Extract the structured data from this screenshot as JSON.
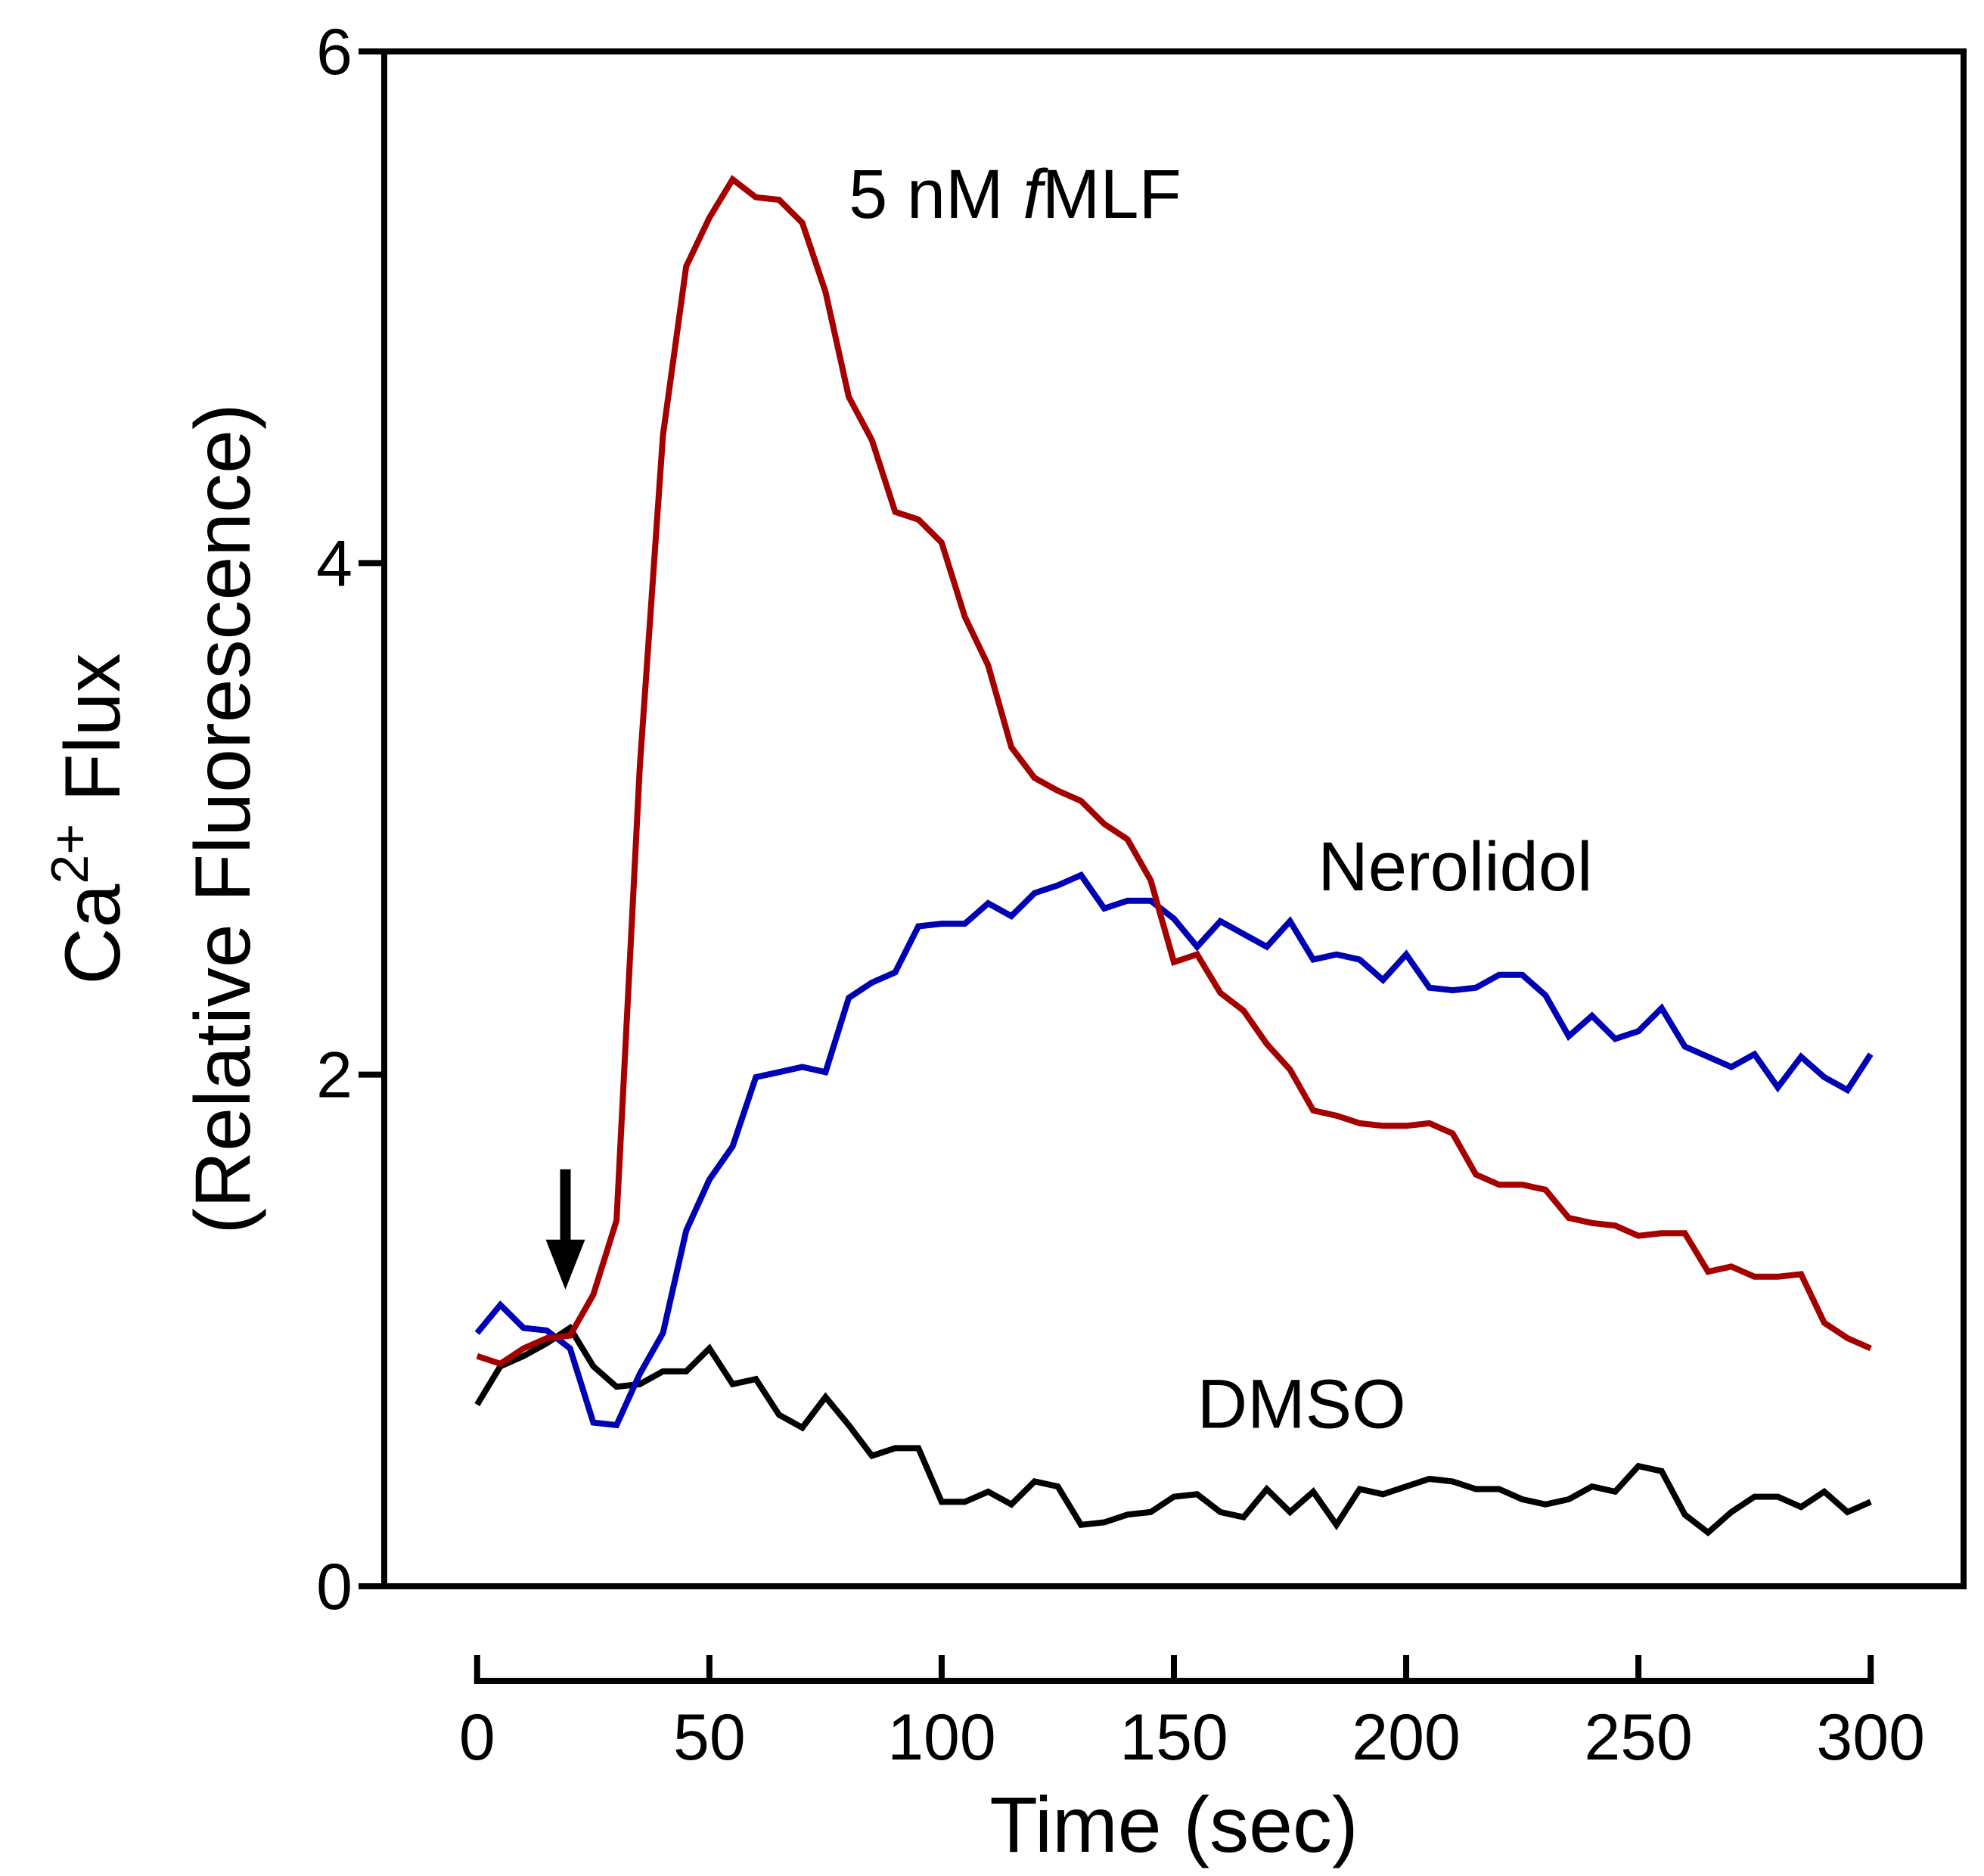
{
  "chart_data": {
    "type": "line",
    "title": "",
    "xlabel": "Time (sec)",
    "ylabel": {
      "prefix": "Ca",
      "superscript": "2+",
      "suffix": " Flux",
      "line2": "(Relative Fluorescence)"
    },
    "xlim": [
      -20,
      320
    ],
    "ylim": [
      0,
      6
    ],
    "x_ticks": [
      0,
      50,
      100,
      150,
      200,
      250,
      300
    ],
    "y_ticks": [
      0,
      2,
      4,
      6
    ],
    "x_tick_labels": [
      "0",
      "50",
      "100",
      "150",
      "200",
      "250",
      "300"
    ],
    "y_tick_labels": [
      "0",
      "2",
      "4",
      "6"
    ],
    "arrow_annotation": {
      "x": 19,
      "y_from": 1.63,
      "y_to": 1.16
    },
    "series": [
      {
        "name": "5 nM fMLF",
        "label_parts": [
          "5 nM ",
          "f",
          "MLF"
        ],
        "label_anchor": {
          "x": 80,
          "y": 5.35
        },
        "color": "#A50000",
        "x": [
          0,
          5,
          10,
          15,
          20,
          25,
          30,
          35,
          40,
          45,
          50,
          55,
          60,
          65,
          70,
          75,
          80,
          85,
          90,
          95,
          100,
          105,
          110,
          115,
          120,
          125,
          130,
          135,
          140,
          145,
          150,
          155,
          160,
          165,
          170,
          175,
          180,
          185,
          190,
          195,
          200,
          205,
          210,
          215,
          220,
          225,
          230,
          235,
          240,
          245,
          250,
          255,
          260,
          265,
          270,
          275,
          280,
          285,
          290,
          295,
          300
        ],
        "y": [
          0.9,
          0.87,
          0.93,
          0.97,
          0.98,
          1.14,
          1.43,
          3.2,
          4.5,
          5.16,
          5.35,
          5.5,
          5.43,
          5.42,
          5.33,
          5.06,
          4.65,
          4.48,
          4.2,
          4.17,
          4.08,
          3.79,
          3.6,
          3.28,
          3.16,
          3.11,
          3.07,
          2.98,
          2.92,
          2.76,
          2.44,
          2.47,
          2.32,
          2.25,
          2.12,
          2.02,
          1.86,
          1.84,
          1.81,
          1.8,
          1.8,
          1.81,
          1.77,
          1.61,
          1.57,
          1.57,
          1.55,
          1.44,
          1.42,
          1.41,
          1.37,
          1.38,
          1.38,
          1.23,
          1.25,
          1.21,
          1.21,
          1.22,
          1.03,
          0.97,
          0.93
        ]
      },
      {
        "name": "Nerolidol",
        "label_parts": [
          "Nerolidol"
        ],
        "label_anchor": {
          "x": 181,
          "y": 2.72
        },
        "color": "#0000B4",
        "x": [
          0,
          5,
          10,
          15,
          20,
          25,
          30,
          35,
          40,
          45,
          50,
          55,
          60,
          65,
          70,
          75,
          80,
          85,
          90,
          95,
          100,
          105,
          110,
          115,
          120,
          125,
          130,
          135,
          140,
          145,
          150,
          155,
          160,
          165,
          170,
          175,
          180,
          185,
          190,
          195,
          200,
          205,
          210,
          215,
          220,
          225,
          230,
          235,
          240,
          245,
          250,
          255,
          260,
          265,
          270,
          275,
          280,
          285,
          290,
          295,
          300
        ],
        "y": [
          0.99,
          1.1,
          1.01,
          1.0,
          0.93,
          0.64,
          0.63,
          0.83,
          0.99,
          1.39,
          1.59,
          1.72,
          1.99,
          2.01,
          2.03,
          2.01,
          2.3,
          2.36,
          2.4,
          2.58,
          2.59,
          2.59,
          2.67,
          2.62,
          2.71,
          2.74,
          2.78,
          2.65,
          2.68,
          2.68,
          2.61,
          2.5,
          2.6,
          2.55,
          2.5,
          2.6,
          2.45,
          2.47,
          2.45,
          2.37,
          2.47,
          2.34,
          2.33,
          2.34,
          2.39,
          2.39,
          2.31,
          2.15,
          2.23,
          2.14,
          2.17,
          2.26,
          2.11,
          2.07,
          2.03,
          2.08,
          1.95,
          2.07,
          1.99,
          1.94,
          2.08
        ]
      },
      {
        "name": "DMSO",
        "label_parts": [
          "DMSO"
        ],
        "label_anchor": {
          "x": 155,
          "y": 0.62
        },
        "color": "#000000",
        "x": [
          0,
          5,
          10,
          15,
          20,
          25,
          30,
          35,
          40,
          45,
          50,
          55,
          60,
          65,
          70,
          75,
          80,
          85,
          90,
          95,
          100,
          105,
          110,
          115,
          120,
          125,
          130,
          135,
          140,
          145,
          150,
          155,
          160,
          165,
          170,
          175,
          180,
          185,
          190,
          195,
          200,
          205,
          210,
          215,
          220,
          225,
          230,
          235,
          240,
          245,
          250,
          255,
          260,
          265,
          270,
          275,
          280,
          285,
          290,
          295,
          300
        ],
        "y": [
          0.71,
          0.86,
          0.9,
          0.95,
          1.01,
          0.86,
          0.78,
          0.79,
          0.84,
          0.84,
          0.93,
          0.79,
          0.81,
          0.67,
          0.62,
          0.74,
          0.63,
          0.51,
          0.54,
          0.54,
          0.33,
          0.33,
          0.37,
          0.32,
          0.41,
          0.39,
          0.24,
          0.25,
          0.28,
          0.29,
          0.35,
          0.36,
          0.29,
          0.27,
          0.38,
          0.29,
          0.37,
          0.24,
          0.38,
          0.36,
          0.39,
          0.42,
          0.41,
          0.38,
          0.38,
          0.34,
          0.32,
          0.34,
          0.39,
          0.37,
          0.47,
          0.45,
          0.28,
          0.21,
          0.29,
          0.35,
          0.35,
          0.31,
          0.37,
          0.29,
          0.33
        ]
      }
    ]
  }
}
